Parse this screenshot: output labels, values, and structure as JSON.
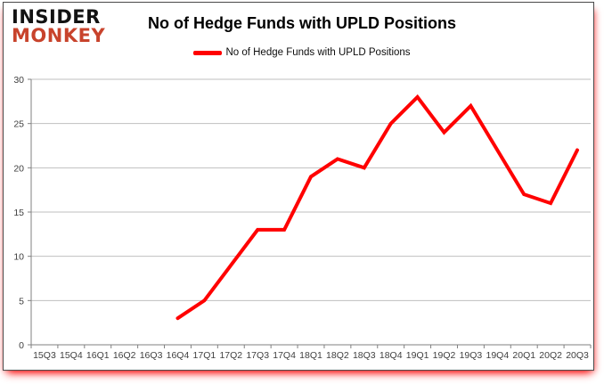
{
  "logo": {
    "line1": "INSIDER",
    "line2": "MONKEY"
  },
  "header": {
    "title": "No of Hedge Funds with UPLD Positions"
  },
  "legend": {
    "label": "No of Hedge Funds with UPLD Positions",
    "swatch_color": "#ff0000"
  },
  "colors": {
    "line": "#ff0000",
    "gridline": "#bfbfbf",
    "axis": "#808080",
    "tick_label": "#3f3f3f",
    "logo_black": "#121212",
    "logo_red": "#c8432c",
    "border_shadow_red": "#ff1414"
  },
  "chart_data": {
    "type": "line",
    "title": "No of Hedge Funds with UPLD Positions",
    "categories": [
      "15Q3",
      "15Q4",
      "16Q1",
      "16Q2",
      "16Q3",
      "16Q4",
      "17Q1",
      "17Q2",
      "17Q3",
      "17Q4",
      "18Q1",
      "18Q2",
      "18Q3",
      "18Q4",
      "19Q1",
      "19Q2",
      "19Q3",
      "19Q4",
      "20Q1",
      "20Q2",
      "20Q3"
    ],
    "series": [
      {
        "name": "No of Hedge Funds with UPLD Positions",
        "color": "#ff0000",
        "values": [
          null,
          null,
          null,
          null,
          null,
          3,
          5,
          9,
          13,
          13,
          19,
          21,
          20,
          25,
          28,
          24,
          27,
          22,
          17,
          16,
          22
        ]
      }
    ],
    "xlabel": "",
    "ylabel": "",
    "ylim": [
      0,
      30
    ],
    "yticks": [
      0,
      5,
      10,
      15,
      20,
      25,
      30
    ],
    "grid": true,
    "legend_position": "top"
  }
}
